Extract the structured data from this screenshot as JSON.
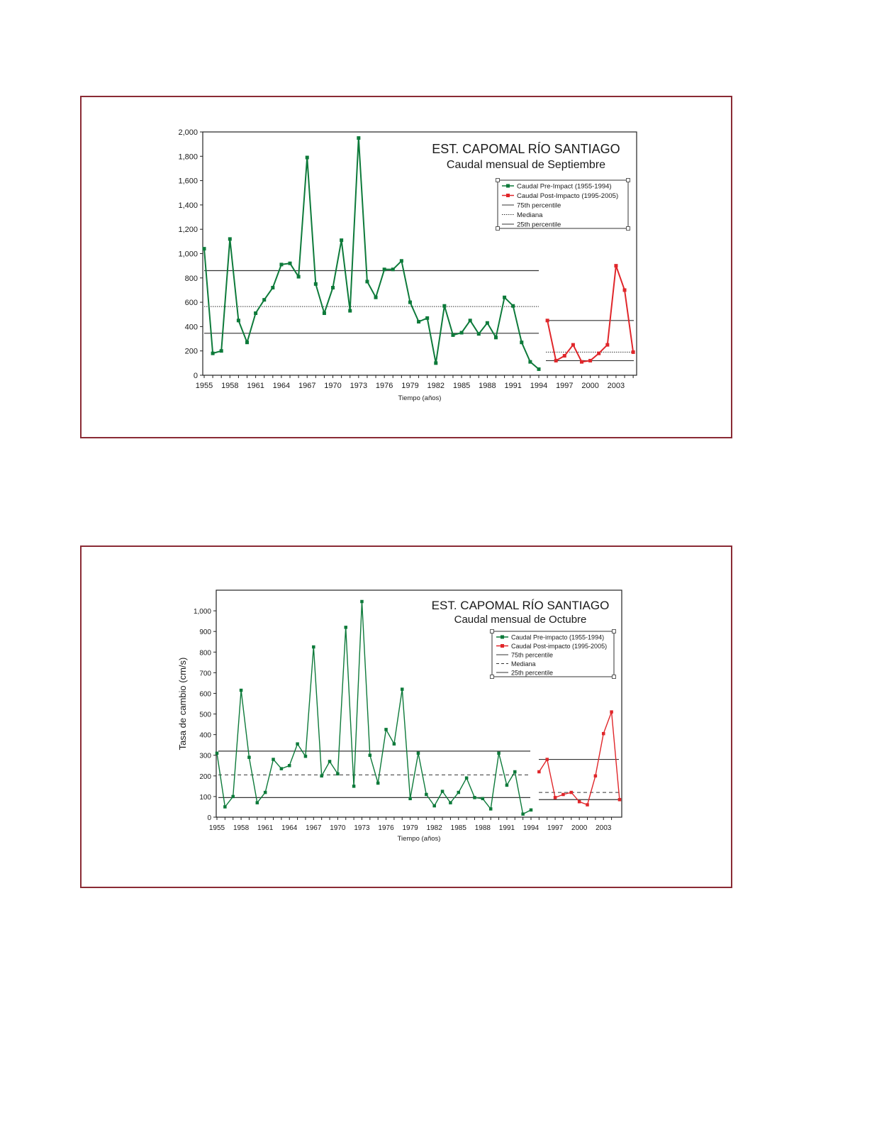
{
  "colors": {
    "pre": "#0d7a3a",
    "post": "#e0262a",
    "frame": "#8a2b35",
    "ref": "#333333"
  },
  "chart_data": [
    {
      "type": "line",
      "title": "EST. CAPOMAL RÍO SANTIAGO",
      "subtitle": "Caudal mensual de Septiembre",
      "xlabel": "Tiempo (años)",
      "ylabel": "",
      "ylim": [
        0,
        2000
      ],
      "yticks": [
        0,
        200,
        400,
        600,
        800,
        1000,
        1200,
        1400,
        1600,
        1800,
        2000
      ],
      "ytick_labels": [
        "0",
        "200",
        "400",
        "600",
        "800",
        "1,000",
        "1,200",
        "1,400",
        "1,600",
        "1,800",
        "2,000"
      ],
      "xlim": [
        1955,
        2005
      ],
      "xticks": [
        1955,
        1958,
        1961,
        1964,
        1967,
        1970,
        1973,
        1976,
        1979,
        1982,
        1985,
        1988,
        1991,
        1994,
        1997,
        2000,
        2003
      ],
      "legend_position": "top-right",
      "legend": [
        "Caudal Pre-Impact (1955-1994)",
        "Caudal Post-Impacto (1995-2005)",
        "75th percentile",
        "Mediana",
        "25th percentile"
      ],
      "median_style": "dotted",
      "series": [
        {
          "name": "Caudal Pre-Impact (1955-1994)",
          "color": "#0d7a3a",
          "x": [
            1955,
            1956,
            1957,
            1958,
            1959,
            1960,
            1961,
            1962,
            1963,
            1964,
            1965,
            1966,
            1967,
            1968,
            1969,
            1970,
            1971,
            1972,
            1973,
            1974,
            1975,
            1976,
            1977,
            1978,
            1979,
            1980,
            1981,
            1982,
            1983,
            1984,
            1985,
            1986,
            1987,
            1988,
            1989,
            1990,
            1991,
            1992,
            1993,
            1994
          ],
          "values": [
            1040,
            180,
            200,
            1120,
            450,
            270,
            510,
            620,
            720,
            910,
            920,
            810,
            1790,
            750,
            510,
            720,
            1110,
            530,
            1950,
            770,
            640,
            870,
            870,
            940,
            600,
            440,
            470,
            100,
            570,
            330,
            350,
            450,
            340,
            430,
            310,
            640,
            570,
            270,
            110,
            50
          ],
          "p75": 860,
          "median": 565,
          "p25": 345
        },
        {
          "name": "Caudal Post-Impacto (1995-2005)",
          "color": "#e0262a",
          "x": [
            1995,
            1996,
            1997,
            1998,
            1999,
            2000,
            2001,
            2002,
            2003,
            2004,
            2005
          ],
          "values": [
            450,
            120,
            160,
            250,
            110,
            120,
            180,
            250,
            900,
            700,
            190
          ],
          "p75": 450,
          "median": 190,
          "p25": 120
        }
      ]
    },
    {
      "type": "line",
      "title": "EST. CAPOMAL RÍO SANTIAGO",
      "subtitle": "Caudal mensual de Octubre",
      "xlabel": "Tiempo (años)",
      "ylabel": "Tasa de cambio (cm/s)",
      "ylim": [
        0,
        1100
      ],
      "yticks": [
        0,
        100,
        200,
        300,
        400,
        500,
        600,
        700,
        800,
        900,
        1000
      ],
      "ytick_labels": [
        "0",
        "100",
        "200",
        "300",
        "400",
        "500",
        "600",
        "700",
        "800",
        "900",
        "1,000"
      ],
      "xlim": [
        1955,
        2004
      ],
      "xticks": [
        1955,
        1958,
        1961,
        1964,
        1967,
        1970,
        1973,
        1976,
        1979,
        1982,
        1985,
        1988,
        1991,
        1994,
        1997,
        2000,
        2003
      ],
      "legend_position": "top-right",
      "legend": [
        "Caudal Pre-impacto (1955-1994)",
        "Caudal Post-impacto (1995-2005)",
        "75th percentile",
        "Mediana",
        "25th percentile"
      ],
      "median_style": "dashed",
      "series": [
        {
          "name": "Caudal Pre-impacto (1955-1994)",
          "color": "#0d7a3a",
          "x": [
            1955,
            1956,
            1957,
            1958,
            1959,
            1960,
            1961,
            1962,
            1963,
            1964,
            1965,
            1966,
            1967,
            1968,
            1969,
            1970,
            1971,
            1972,
            1973,
            1974,
            1975,
            1976,
            1977,
            1978,
            1979,
            1980,
            1981,
            1982,
            1983,
            1984,
            1985,
            1986,
            1987,
            1988,
            1989,
            1990,
            1991,
            1992,
            1993,
            1994
          ],
          "values": [
            310,
            50,
            100,
            615,
            290,
            70,
            120,
            280,
            235,
            250,
            355,
            295,
            825,
            200,
            270,
            210,
            920,
            150,
            1045,
            300,
            165,
            425,
            355,
            620,
            90,
            310,
            110,
            55,
            125,
            70,
            120,
            190,
            95,
            90,
            40,
            310,
            155,
            220,
            15,
            35
          ],
          "p75": 320,
          "median": 205,
          "p25": 95
        },
        {
          "name": "Caudal Post-impacto (1995-2005)",
          "color": "#e0262a",
          "x": [
            1995,
            1996,
            1997,
            1998,
            1999,
            2000,
            2001,
            2002,
            2003,
            2004,
            2005
          ],
          "values": [
            220,
            280,
            95,
            110,
            120,
            75,
            60,
            200,
            405,
            510,
            85
          ],
          "p75": 280,
          "median": 120,
          "p25": 85
        }
      ]
    }
  ]
}
